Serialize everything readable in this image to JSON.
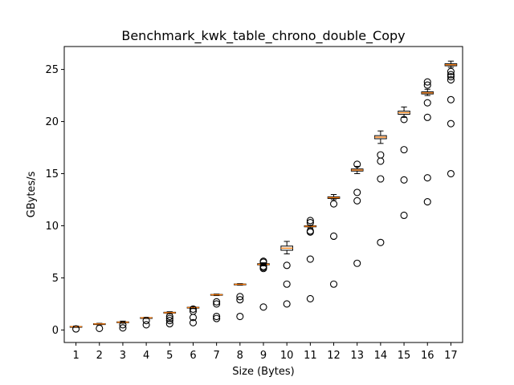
{
  "chart_data": {
    "type": "box",
    "title": "Benchmark_kwk_table_chrono_double_Copy",
    "xlabel": "Size (Bytes)",
    "ylabel": "GBytes/s",
    "ylim": [
      -1.2,
      27.2
    ],
    "yticks": [
      0,
      5,
      10,
      15,
      20,
      25
    ],
    "grid": false,
    "colors": {
      "box": "#000000",
      "median": "#ff7f0e",
      "flier": "#000000"
    },
    "categories": [
      "1",
      "2",
      "3",
      "4",
      "5",
      "6",
      "7",
      "8",
      "9",
      "10",
      "11",
      "12",
      "13",
      "14",
      "15",
      "16",
      "17"
    ],
    "boxes": [
      {
        "x": "1",
        "whislo": 0.25,
        "q1": 0.3,
        "med": 0.32,
        "q3": 0.34,
        "whishi": 0.38,
        "fliers": [
          0.1
        ]
      },
      {
        "x": "2",
        "whislo": 0.5,
        "q1": 0.55,
        "med": 0.58,
        "q3": 0.6,
        "whishi": 0.64,
        "fliers": [
          0.15
        ]
      },
      {
        "x": "3",
        "whislo": 0.65,
        "q1": 0.72,
        "med": 0.75,
        "q3": 0.78,
        "whishi": 0.85,
        "fliers": [
          0.2,
          0.5
        ]
      },
      {
        "x": "4",
        "whislo": 1.1,
        "q1": 1.15,
        "med": 1.17,
        "q3": 1.19,
        "whishi": 1.22,
        "fliers": [
          0.5,
          0.9
        ]
      },
      {
        "x": "5",
        "whislo": 1.55,
        "q1": 1.62,
        "med": 1.66,
        "q3": 1.7,
        "whishi": 1.75,
        "fliers": [
          0.6,
          0.9,
          1.1,
          1.3
        ]
      },
      {
        "x": "6",
        "whislo": 2.05,
        "q1": 2.12,
        "med": 2.15,
        "q3": 2.18,
        "whishi": 2.22,
        "fliers": [
          0.7,
          1.2,
          1.8,
          2.0
        ]
      },
      {
        "x": "7",
        "whislo": 3.3,
        "q1": 3.35,
        "med": 3.38,
        "q3": 3.41,
        "whishi": 3.45,
        "fliers": [
          1.1,
          1.3,
          2.5,
          2.7
        ]
      },
      {
        "x": "8",
        "whislo": 4.3,
        "q1": 4.35,
        "med": 4.38,
        "q3": 4.41,
        "whishi": 4.45,
        "fliers": [
          1.3,
          2.9,
          3.2
        ]
      },
      {
        "x": "9",
        "whislo": 6.15,
        "q1": 6.25,
        "med": 6.3,
        "q3": 6.36,
        "whishi": 6.45,
        "fliers": [
          2.2,
          5.9,
          6.0,
          6.1,
          6.5,
          6.6
        ]
      },
      {
        "x": "10",
        "whislo": 7.3,
        "q1": 7.65,
        "med": 7.85,
        "q3": 8.05,
        "whishi": 8.5,
        "fliers": [
          2.5,
          4.4,
          6.2
        ]
      },
      {
        "x": "11",
        "whislo": 9.8,
        "q1": 9.9,
        "med": 9.95,
        "q3": 10.0,
        "whishi": 10.05,
        "fliers": [
          3.0,
          6.8,
          9.4,
          9.5,
          10.3,
          10.5
        ]
      },
      {
        "x": "12",
        "whislo": 12.5,
        "q1": 12.62,
        "med": 12.7,
        "q3": 12.78,
        "whishi": 13.0,
        "fliers": [
          4.4,
          9.0,
          12.1
        ]
      },
      {
        "x": "13",
        "whislo": 15.0,
        "q1": 15.25,
        "med": 15.35,
        "q3": 15.45,
        "whishi": 15.7,
        "fliers": [
          6.4,
          12.4,
          13.2,
          15.9
        ]
      },
      {
        "x": "14",
        "whislo": 17.9,
        "q1": 18.35,
        "med": 18.5,
        "q3": 18.65,
        "whishi": 19.1,
        "fliers": [
          8.4,
          14.5,
          16.2,
          16.8
        ]
      },
      {
        "x": "15",
        "whislo": 20.4,
        "q1": 20.7,
        "med": 20.85,
        "q3": 21.0,
        "whishi": 21.4,
        "fliers": [
          11.0,
          14.4,
          17.3,
          20.2
        ]
      },
      {
        "x": "16",
        "whislo": 22.5,
        "q1": 22.65,
        "med": 22.75,
        "q3": 22.85,
        "whishi": 23.1,
        "fliers": [
          12.3,
          14.6,
          20.4,
          21.8,
          23.5,
          23.8
        ]
      },
      {
        "x": "17",
        "whislo": 25.2,
        "q1": 25.35,
        "med": 25.45,
        "q3": 25.55,
        "whishi": 25.8,
        "fliers": [
          15.0,
          19.8,
          22.1,
          24.0,
          24.3,
          24.5,
          24.8
        ]
      }
    ]
  }
}
